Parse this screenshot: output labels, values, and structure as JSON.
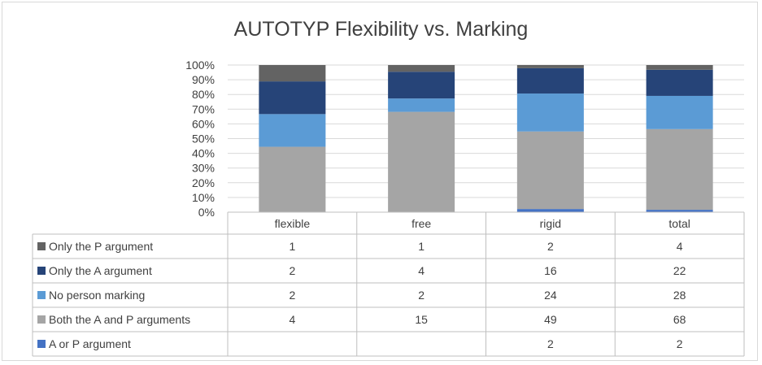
{
  "chart_data": {
    "type": "bar",
    "stacked": "percent",
    "title": "AUTOTYP Flexibility vs. Marking",
    "categories": [
      "flexible",
      "free",
      "rigid",
      "total"
    ],
    "yticks": [
      "0%",
      "10%",
      "20%",
      "30%",
      "40%",
      "50%",
      "60%",
      "70%",
      "80%",
      "90%",
      "100%"
    ],
    "ylim": [
      0,
      100
    ],
    "grid": true,
    "legend": "data-table",
    "series": [
      {
        "name": "A or P argument",
        "color": "#4472c4",
        "values": [
          null,
          null,
          2,
          2
        ]
      },
      {
        "name": "Both the A and P arguments",
        "color": "#a5a5a5",
        "values": [
          4,
          15,
          49,
          68
        ]
      },
      {
        "name": "No person marking",
        "color": "#5b9bd5",
        "values": [
          2,
          2,
          24,
          28
        ]
      },
      {
        "name": "Only the A argument",
        "color": "#264478",
        "values": [
          2,
          4,
          16,
          22
        ]
      },
      {
        "name": "Only the P argument",
        "color": "#636363",
        "values": [
          1,
          1,
          2,
          4
        ]
      }
    ]
  }
}
